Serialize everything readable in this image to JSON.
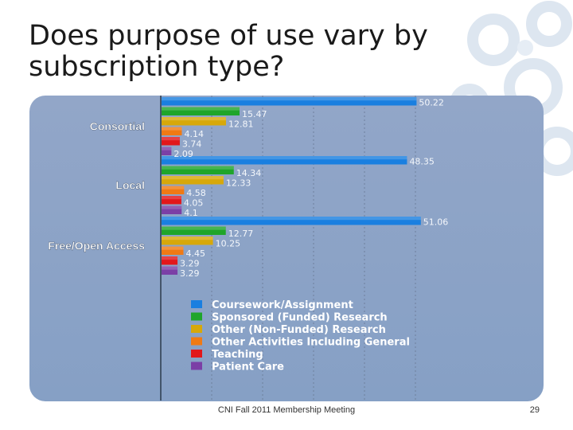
{
  "slide": {
    "title": "Does purpose of use vary by subscription type?",
    "footer": "CNI Fall 2011 Membership Meeting",
    "page_number": "29"
  },
  "chart_data": {
    "type": "bar",
    "orientation": "horizontal",
    "title": "",
    "xlabel": "",
    "ylabel": "",
    "xlim": [
      0,
      60
    ],
    "grid": true,
    "legend_position": "bottom-center",
    "categories": [
      "Consortial",
      "Local",
      "Free/Open Access"
    ],
    "series": [
      {
        "name": "Coursework/Assignment",
        "color": "#1a7fe0",
        "values": [
          50.22,
          48.35,
          51.06
        ]
      },
      {
        "name": "Sponsored (Funded) Research",
        "color": "#1fa52a",
        "values": [
          15.47,
          14.34,
          12.77
        ]
      },
      {
        "name": "Other (Non-Funded) Research",
        "color": "#d7a80a",
        "values": [
          12.81,
          12.33,
          10.25
        ]
      },
      {
        "name": "Other Activities Including General",
        "color": "#f07a14",
        "values": [
          4.14,
          4.58,
          4.45
        ]
      },
      {
        "name": "Teaching",
        "color": "#e2171b",
        "values": [
          3.74,
          4.05,
          3.29
        ]
      },
      {
        "name": "Patient Care",
        "color": "#7b3fa6",
        "values": [
          2.09,
          4.1,
          3.29
        ]
      }
    ]
  }
}
